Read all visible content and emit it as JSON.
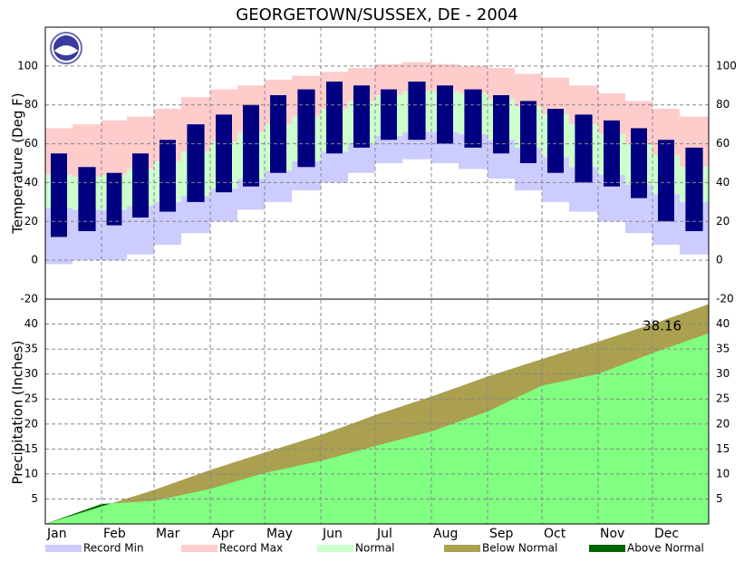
{
  "title": "GEORGETOWN/SUSSEX, DE - 2004",
  "legend": [
    {
      "name": "Record Min",
      "color": "#ccccff"
    },
    {
      "name": "Record Max",
      "color": "#ffcccc"
    },
    {
      "name": "Normal",
      "color": "#ccffcc"
    },
    {
      "name": "Below Normal",
      "color": "#aaa04f"
    },
    {
      "name": "Above Normal",
      "color": "#006400"
    }
  ],
  "chart_data": [
    {
      "type": "bar",
      "y_label": "Temperature (Deg F)",
      "x": [
        0,
        15,
        31,
        45,
        60,
        75,
        91,
        106,
        121,
        136,
        152,
        167,
        182,
        197,
        213,
        228,
        244,
        259,
        274,
        289,
        305,
        320,
        335,
        350
      ],
      "xlim": [
        0,
        366
      ],
      "xticks": [
        {
          "value": 0,
          "label": "Jan"
        },
        {
          "value": 31,
          "label": "Feb"
        },
        {
          "value": 60,
          "label": "Mar"
        },
        {
          "value": 91,
          "label": "Apr"
        },
        {
          "value": 121,
          "label": "May"
        },
        {
          "value": 152,
          "label": "Jun"
        },
        {
          "value": 182,
          "label": "Jul"
        },
        {
          "value": 213,
          "label": "Aug"
        },
        {
          "value": 244,
          "label": "Sep"
        },
        {
          "value": 274,
          "label": "Oct"
        },
        {
          "value": 305,
          "label": "Nov"
        },
        {
          "value": 335,
          "label": "Dec"
        }
      ],
      "record_min": [
        -2,
        0,
        0,
        3,
        8,
        14,
        20,
        26,
        30,
        36,
        40,
        45,
        50,
        52,
        50,
        47,
        42,
        36,
        30,
        25,
        20,
        14,
        8,
        3
      ],
      "record_max": [
        68,
        70,
        72,
        74,
        78,
        84,
        88,
        90,
        93,
        95,
        97,
        99,
        101,
        102,
        101,
        100,
        99,
        96,
        94,
        90,
        86,
        82,
        78,
        74
      ],
      "normal_low": [
        27,
        26,
        26,
        28,
        30,
        33,
        37,
        42,
        46,
        51,
        56,
        60,
        64,
        66,
        66,
        65,
        62,
        58,
        53,
        48,
        44,
        39,
        34,
        30
      ],
      "normal_high": [
        44,
        43,
        44,
        47,
        51,
        56,
        61,
        66,
        70,
        74,
        78,
        82,
        85,
        87,
        87,
        86,
        83,
        79,
        75,
        70,
        65,
        60,
        54,
        48
      ],
      "observed_low": [
        12,
        15,
        18,
        22,
        25,
        30,
        35,
        38,
        45,
        48,
        55,
        58,
        62,
        62,
        60,
        58,
        55,
        50,
        45,
        40,
        38,
        32,
        20,
        15
      ],
      "observed_high": [
        55,
        48,
        45,
        55,
        62,
        70,
        75,
        80,
        85,
        88,
        92,
        90,
        88,
        92,
        90,
        88,
        85,
        82,
        78,
        75,
        72,
        68,
        62,
        58
      ],
      "observed_color": "#000080",
      "ylim": [
        -20,
        120
      ],
      "yticks": [
        -20,
        0,
        20,
        40,
        60,
        80,
        100
      ],
      "grid": true
    },
    {
      "type": "area",
      "y_label": "Precipitation (Inches)",
      "x": [
        0,
        31,
        60,
        91,
        121,
        152,
        182,
        213,
        244,
        274,
        305,
        335,
        366
      ],
      "xlim": [
        0,
        366
      ],
      "normal": [
        0,
        3.5,
        6.8,
        10.8,
        14.3,
        17.8,
        21.8,
        25.5,
        29.5,
        33,
        36.5,
        40,
        44
      ],
      "observed": [
        0,
        4.0,
        4.6,
        7.0,
        10.2,
        12.6,
        15.6,
        18.5,
        22.5,
        27.7,
        30,
        34.2,
        38.16
      ],
      "observed_color": "#80ff80",
      "ylim": [
        0,
        45
      ],
      "yticks": [
        5,
        10,
        15,
        20,
        25,
        30,
        35,
        40
      ],
      "grid": true
    }
  ]
}
